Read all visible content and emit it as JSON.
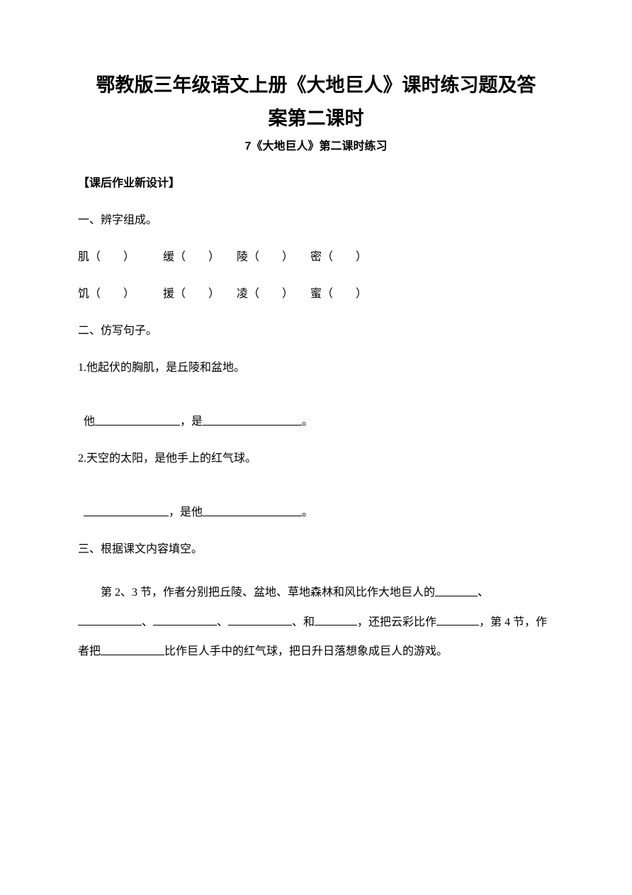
{
  "title_line1": "鄂教版三年级语文上册《大地巨人》课时练习题及答",
  "title_line2": "案第二课时",
  "subtitle": "7《大地巨人》第二课时练习",
  "section_header": "【课后作业新设计】",
  "q1": {
    "heading": "一、辨字组成。",
    "row1": "肌（　　）　　　缓（　　）　　陵（　　）　　密（　　）",
    "row2": "饥（　　）　　　援（　　）　　凌（　　）　　蜜（　　）"
  },
  "q2": {
    "heading": "二、仿写句子。",
    "item1_line1": "1.他起伏的胸肌，是丘陵和盆地。",
    "item1_prefix": "他",
    "item1_mid": "，是",
    "item1_suffix": "。",
    "item2_line1": "2.天空的太阳，是他手上的红气球。",
    "item2_mid": "，是他",
    "item2_suffix": "。"
  },
  "q3": {
    "heading": "三、根据课文内容填空。",
    "p_a": "第 2、3 节，作者分别把丘陵、盆地、草地森林和风比作大地巨人的",
    "p_b": "、",
    "p_c": "、",
    "p_d": "、",
    "p_e": "、和",
    "p_f": "，还把云彩比作",
    "p_g": "，第 4 节，作者把",
    "p_h": "比作巨人手中的红气球，把日升日落想象成巨人的游戏。"
  },
  "colors": {
    "text": "#000000",
    "background": "#ffffff"
  }
}
